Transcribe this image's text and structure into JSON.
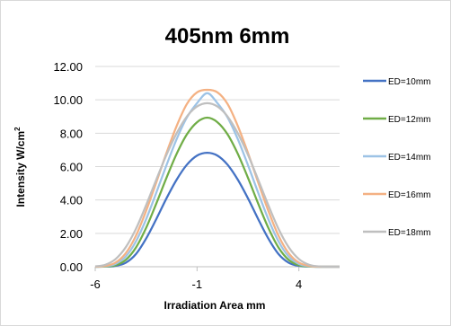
{
  "chart_data": {
    "type": "line",
    "title": "405nm 6mm",
    "xlabel": "Irradiation  Area mm",
    "ylabel_main": "Intensity  W/cm",
    "ylabel_sup": "2",
    "xlim": [
      -6,
      6
    ],
    "ylim": [
      0,
      12
    ],
    "x_ticks": [
      -6,
      -1,
      4
    ],
    "y_ticks": [
      "0.00",
      "2.00",
      "4.00",
      "6.00",
      "8.00",
      "10.00",
      "12.00"
    ],
    "grid": "horizontal",
    "legend_position": "right",
    "x": [
      -6,
      -5.5,
      -5,
      -4.5,
      -4,
      -3.5,
      -3,
      -2.5,
      -2,
      -1.5,
      -1,
      -0.5,
      0,
      0.5,
      1,
      1.5,
      2,
      2.5,
      3,
      3.5,
      4,
      4.5,
      5,
      5.5,
      6
    ],
    "series": [
      {
        "name": "ED=10mm",
        "color": "#4472c4",
        "values": [
          0,
          0.01,
          0.05,
          0.24,
          0.76,
          1.69,
          2.86,
          4.1,
          5.22,
          6.11,
          6.66,
          6.83,
          6.66,
          6.11,
          5.22,
          4.1,
          2.86,
          1.69,
          0.76,
          0.24,
          0.05,
          0.01,
          0,
          0,
          0
        ]
      },
      {
        "name": "ED=12mm",
        "color": "#70ad47",
        "values": [
          0,
          0.01,
          0.09,
          0.41,
          1.15,
          2.33,
          3.79,
          5.33,
          6.77,
          7.93,
          8.66,
          8.93,
          8.66,
          7.93,
          6.77,
          5.33,
          3.79,
          2.33,
          1.15,
          0.41,
          0.09,
          0.01,
          0,
          0,
          0
        ]
      },
      {
        "name": "ED=14mm",
        "color": "#9dc3e6",
        "values": [
          0,
          0.03,
          0.17,
          0.61,
          1.52,
          2.85,
          4.44,
          6.09,
          7.65,
          8.94,
          9.8,
          10.4,
          9.8,
          8.94,
          7.65,
          6.09,
          4.44,
          2.85,
          1.52,
          0.61,
          0.17,
          0.03,
          0,
          0,
          0
        ]
      },
      {
        "name": "ED=16mm",
        "color": "#f4b183",
        "values": [
          0,
          0.05,
          0.25,
          0.81,
          1.86,
          3.35,
          5.06,
          6.82,
          8.44,
          9.75,
          10.45,
          10.6,
          10.45,
          9.75,
          8.44,
          6.82,
          5.06,
          3.35,
          1.86,
          0.81,
          0.25,
          0.05,
          0,
          0,
          0
        ]
      },
      {
        "name": "ED=18mm",
        "color": "#bfbfbf",
        "values": [
          0.02,
          0.12,
          0.46,
          1.17,
          2.27,
          3.69,
          5.22,
          6.71,
          8.0,
          9.0,
          9.6,
          9.8,
          9.6,
          9.0,
          8.0,
          6.71,
          5.22,
          3.69,
          2.27,
          1.17,
          0.46,
          0.12,
          0.02,
          0,
          0
        ]
      }
    ]
  }
}
